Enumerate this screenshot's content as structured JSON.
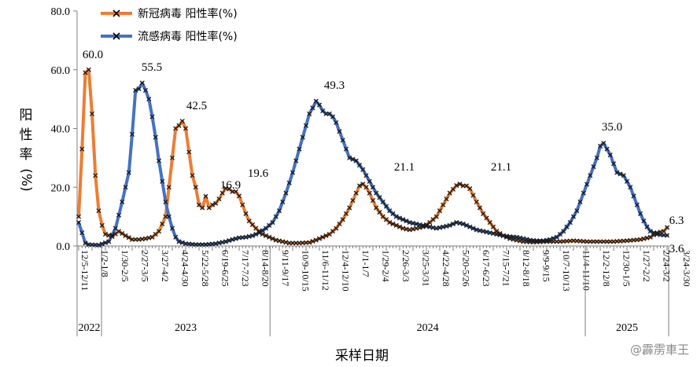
{
  "chart_data": {
    "type": "line",
    "xlabel": "采样日期",
    "ylabel_chars": [
      "阳",
      "性",
      "率",
      "(%)"
    ],
    "ylim": [
      0,
      80
    ],
    "yticks": [
      "0.0",
      "20.0",
      "40.0",
      "60.0",
      "80.0"
    ],
    "ytick_values": [
      0,
      20,
      40,
      60,
      80
    ],
    "grid": false,
    "legend_position": "top-left",
    "n_points": 177,
    "category_labels": [
      "12/5-12/11",
      "1/2-1/8",
      "1/30-2/5",
      "2/27-3/5",
      "3/27-4/2",
      "4/24-4/30",
      "5/22-5/28",
      "6/19-6/25",
      "7/17-7/23",
      "8/14-8/20",
      "9/11-9/17",
      "10/9-10/15",
      "11/6-11/12",
      "12/4-12/10",
      "1/1-1/7",
      "1/29-2/4",
      "2/26-3/3",
      "3/25-3/31",
      "4/22-4/28",
      "5/20-5/26",
      "6/17-6/23",
      "7/15-7/21",
      "8/12-8/18",
      "9/9-9/15",
      "10/7-10/13",
      "11/4-11/10",
      "12/2-12/8",
      "12/30-1/5",
      "1/27-2/2",
      "2/24-3/2",
      "3/24-3/30"
    ],
    "years": [
      "2022",
      "2023",
      "2024",
      "2025"
    ],
    "series": [
      {
        "name": "新冠病毒 阳性率(%)",
        "color": "#ED7D31",
        "anchors": [
          [
            0,
            10
          ],
          [
            1,
            33
          ],
          [
            2,
            59
          ],
          [
            3,
            60
          ],
          [
            4,
            45
          ],
          [
            5,
            24
          ],
          [
            6,
            12
          ],
          [
            7,
            7
          ],
          [
            8,
            4
          ],
          [
            10,
            3.2
          ],
          [
            12,
            5
          ],
          [
            14,
            3.5
          ],
          [
            16,
            2.2
          ],
          [
            18,
            2.2
          ],
          [
            20,
            2.5
          ],
          [
            22,
            3
          ],
          [
            24,
            5
          ],
          [
            26,
            10
          ],
          [
            27,
            20
          ],
          [
            28,
            30
          ],
          [
            29,
            40
          ],
          [
            30,
            41
          ],
          [
            31,
            42.5
          ],
          [
            32,
            40
          ],
          [
            33,
            32
          ],
          [
            34,
            24
          ],
          [
            35,
            20
          ],
          [
            36,
            14
          ],
          [
            37,
            13
          ],
          [
            38,
            16.9
          ],
          [
            39,
            13
          ],
          [
            40,
            14
          ],
          [
            41,
            14.5
          ],
          [
            42,
            16
          ],
          [
            43,
            18
          ],
          [
            44,
            19.6
          ],
          [
            45,
            19.4
          ],
          [
            46,
            18.5
          ],
          [
            47,
            18.5
          ],
          [
            48,
            17
          ],
          [
            49,
            14
          ],
          [
            50,
            11
          ],
          [
            51,
            8.5
          ],
          [
            53,
            6
          ],
          [
            55,
            4
          ],
          [
            57,
            3
          ],
          [
            59,
            2
          ],
          [
            61,
            1.5
          ],
          [
            63,
            1
          ],
          [
            66,
            1
          ],
          [
            69,
            1.2
          ],
          [
            71,
            2
          ],
          [
            73,
            3
          ],
          [
            75,
            4
          ],
          [
            77,
            6
          ],
          [
            79,
            9
          ],
          [
            81,
            13
          ],
          [
            83,
            18
          ],
          [
            84,
            20.5
          ],
          [
            85,
            21.1
          ],
          [
            86,
            20
          ],
          [
            87,
            18
          ],
          [
            89,
            13
          ],
          [
            91,
            10
          ],
          [
            93,
            8
          ],
          [
            95,
            7
          ],
          [
            97,
            6
          ],
          [
            99,
            5.5
          ],
          [
            101,
            6
          ],
          [
            103,
            6.5
          ],
          [
            105,
            8
          ],
          [
            107,
            10
          ],
          [
            109,
            14
          ],
          [
            111,
            18
          ],
          [
            113,
            20.6
          ],
          [
            114,
            21.1
          ],
          [
            115,
            20.5
          ],
          [
            116,
            20.5
          ],
          [
            117,
            19.5
          ],
          [
            119,
            15
          ],
          [
            121,
            11
          ],
          [
            123,
            8
          ],
          [
            125,
            5
          ],
          [
            127,
            3.5
          ],
          [
            129,
            2.5
          ],
          [
            131,
            2
          ],
          [
            133,
            1.5
          ],
          [
            136,
            1.3
          ],
          [
            140,
            1.5
          ],
          [
            144,
            1.5
          ],
          [
            148,
            1.8
          ],
          [
            152,
            1.5
          ],
          [
            156,
            1.5
          ],
          [
            160,
            1.5
          ],
          [
            164,
            1.8
          ],
          [
            168,
            2.2
          ],
          [
            171,
            3
          ],
          [
            173,
            4.5
          ],
          [
            175,
            5
          ],
          [
            176,
            6.3
          ]
        ]
      },
      {
        "name": "流感病毒 阳性率(%)",
        "color": "#4472C4",
        "anchors": [
          [
            0,
            8
          ],
          [
            1,
            4.5
          ],
          [
            2,
            1
          ],
          [
            3,
            0.5
          ],
          [
            6,
            0.3
          ],
          [
            9,
            1.5
          ],
          [
            11,
            6
          ],
          [
            13,
            15
          ],
          [
            15,
            25
          ],
          [
            16,
            38
          ],
          [
            17,
            53
          ],
          [
            18,
            53.5
          ],
          [
            19,
            55.5
          ],
          [
            20,
            53
          ],
          [
            21,
            50
          ],
          [
            22,
            44
          ],
          [
            23,
            37
          ],
          [
            24,
            29
          ],
          [
            25,
            22
          ],
          [
            26,
            15
          ],
          [
            27,
            10
          ],
          [
            28,
            6
          ],
          [
            29,
            3
          ],
          [
            30,
            1.5
          ],
          [
            32,
            0.8
          ],
          [
            35,
            0.5
          ],
          [
            38,
            0.5
          ],
          [
            41,
            0.8
          ],
          [
            44,
            1.5
          ],
          [
            46,
            2.2
          ],
          [
            48,
            2.8
          ],
          [
            50,
            3
          ],
          [
            52,
            3.5
          ],
          [
            54,
            4.5
          ],
          [
            56,
            6
          ],
          [
            58,
            8
          ],
          [
            60,
            12
          ],
          [
            62,
            18
          ],
          [
            64,
            25
          ],
          [
            66,
            33
          ],
          [
            68,
            41
          ],
          [
            69,
            45
          ],
          [
            70,
            47
          ],
          [
            71,
            49.3
          ],
          [
            72,
            48
          ],
          [
            73,
            46
          ],
          [
            74,
            45
          ],
          [
            75,
            45
          ],
          [
            76,
            44
          ],
          [
            77,
            42
          ],
          [
            79,
            36
          ],
          [
            81,
            30
          ],
          [
            83,
            29
          ],
          [
            85,
            26
          ],
          [
            87,
            22
          ],
          [
            89,
            18
          ],
          [
            91,
            15
          ],
          [
            93,
            12
          ],
          [
            95,
            10
          ],
          [
            97,
            9
          ],
          [
            99,
            8
          ],
          [
            101,
            7.5
          ],
          [
            103,
            7
          ],
          [
            105,
            6.5
          ],
          [
            107,
            6
          ],
          [
            109,
            6.5
          ],
          [
            111,
            7
          ],
          [
            113,
            8
          ],
          [
            115,
            7.5
          ],
          [
            117,
            6.5
          ],
          [
            119,
            5.5
          ],
          [
            121,
            5
          ],
          [
            123,
            4.5
          ],
          [
            125,
            4
          ],
          [
            127,
            3.5
          ],
          [
            129,
            3.2
          ],
          [
            131,
            3
          ],
          [
            133,
            2.5
          ],
          [
            135,
            2
          ],
          [
            137,
            1.8
          ],
          [
            139,
            1.8
          ],
          [
            141,
            2.2
          ],
          [
            143,
            3
          ],
          [
            145,
            5
          ],
          [
            147,
            8
          ],
          [
            149,
            12
          ],
          [
            151,
            18
          ],
          [
            153,
            24
          ],
          [
            155,
            30
          ],
          [
            156,
            34
          ],
          [
            157,
            35
          ],
          [
            158,
            33
          ],
          [
            159,
            31
          ],
          [
            160,
            28
          ],
          [
            161,
            25
          ],
          [
            162,
            24.5
          ],
          [
            163,
            24
          ],
          [
            164,
            22
          ],
          [
            165,
            20
          ],
          [
            166,
            17
          ],
          [
            167,
            14
          ],
          [
            168,
            11
          ],
          [
            169,
            8.5
          ],
          [
            170,
            6.5
          ],
          [
            171,
            5
          ],
          [
            172,
            4.5
          ],
          [
            173,
            4
          ],
          [
            174,
            3.8
          ],
          [
            176,
            3.6
          ]
        ]
      }
    ],
    "annotations": [
      "60.0",
      "55.5",
      "42.5",
      "16.9",
      "19.6",
      "49.3",
      "21.1",
      "21.1",
      "35.0",
      "6.3",
      "3.6"
    ]
  },
  "watermark": "@霹雳車王"
}
